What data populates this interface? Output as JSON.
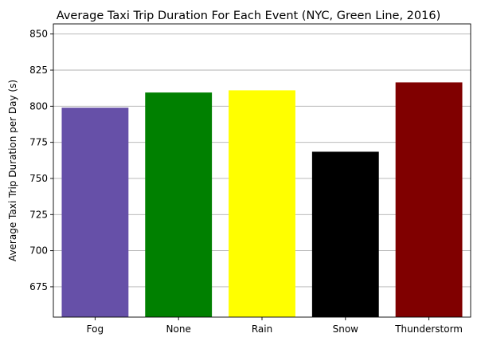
{
  "chart_data": {
    "type": "bar",
    "title": "Average Taxi Trip Duration For Each Event (NYC, Green Line, 2016)",
    "xlabel": "",
    "ylabel": "Average Taxi Trip Duration per Day (s)",
    "categories": [
      "Fog",
      "None",
      "Rain",
      "Snow",
      "Thunderstorm"
    ],
    "values": [
      799,
      809.5,
      811,
      768.5,
      816.5
    ],
    "colors": [
      "#6650a8",
      "#008000",
      "#ffff00",
      "#000000",
      "#800000"
    ],
    "ylim": [
      654,
      857
    ],
    "yticks": [
      675,
      700,
      725,
      750,
      775,
      800,
      825,
      850
    ],
    "grid": "y"
  }
}
